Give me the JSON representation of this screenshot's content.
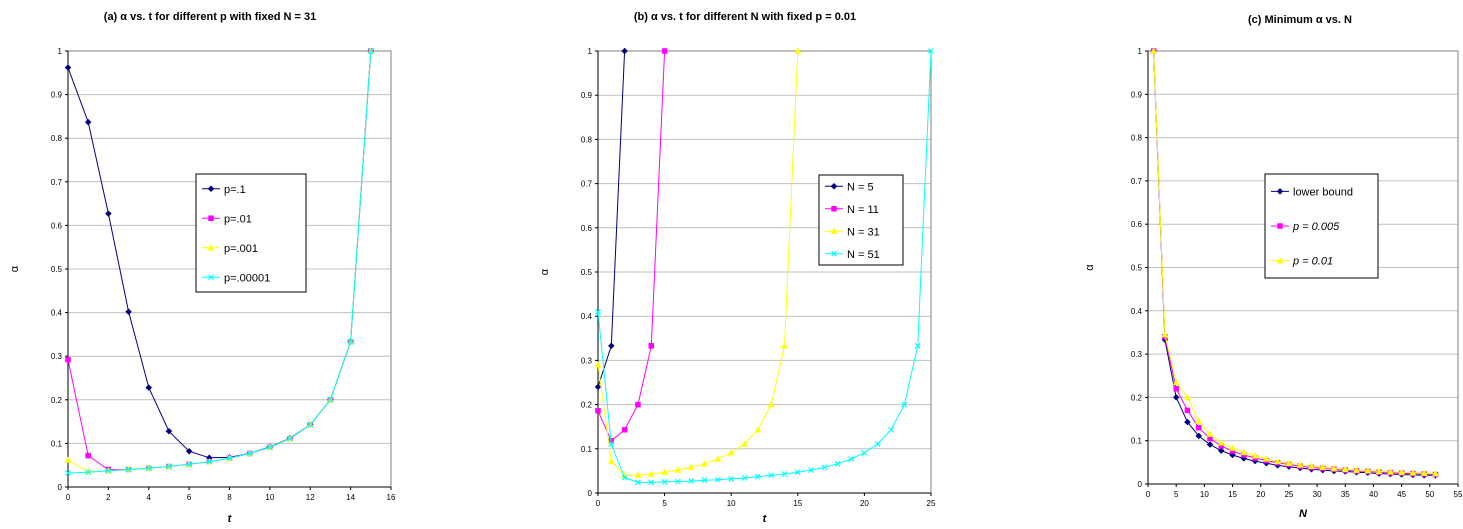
{
  "chart_data": [
    {
      "type": "line",
      "title": "(a) α vs. t for different p with fixed N = 31",
      "xlabel": "t",
      "ylabel": "α",
      "xlim": [
        0,
        16
      ],
      "ylim": [
        0,
        1
      ],
      "xticks": [
        "0",
        "2",
        "4",
        "6",
        "8",
        "10",
        "12",
        "14",
        "16"
      ],
      "yticks": [
        "0",
        "0.1",
        "0.2",
        "0.3",
        "0.4",
        "0.5",
        "0.6",
        "0.7",
        "0.8",
        "0.9",
        "1"
      ],
      "grid": "horizontal",
      "legend_placement": "center-right",
      "series": [
        {
          "name": "p=.1",
          "color": "#000080",
          "marker": "diamond",
          "x": [
            0,
            1,
            2,
            3,
            4,
            5,
            6,
            7,
            8,
            9,
            10,
            11,
            12,
            13,
            14,
            15
          ],
          "y": [
            0.962,
            0.837,
            0.627,
            0.402,
            0.228,
            0.128,
            0.082,
            0.067,
            0.068,
            0.077,
            0.092,
            0.112,
            0.143,
            0.2,
            0.333,
            1.0
          ]
        },
        {
          "name": "p=.01",
          "color": "#FF00FF",
          "marker": "square",
          "x": [
            0,
            1,
            2,
            3,
            4,
            5,
            6,
            7,
            8,
            9,
            10,
            11,
            12,
            13,
            14,
            15
          ],
          "y": [
            0.292,
            0.072,
            0.04,
            0.04,
            0.043,
            0.047,
            0.052,
            0.058,
            0.066,
            0.077,
            0.091,
            0.111,
            0.143,
            0.2,
            0.333,
            1.0
          ]
        },
        {
          "name": "p=.001",
          "color": "#FFFF00",
          "marker": "triangle",
          "x": [
            0,
            1,
            2,
            3,
            4,
            5,
            6,
            7,
            8,
            9,
            10,
            11,
            12,
            13,
            14,
            15
          ],
          "y": [
            0.062,
            0.035,
            0.037,
            0.04,
            0.043,
            0.047,
            0.052,
            0.058,
            0.066,
            0.077,
            0.091,
            0.111,
            0.143,
            0.2,
            0.333,
            1.0
          ]
        },
        {
          "name": "p=.00001",
          "color": "#00FFFF",
          "marker": "x",
          "x": [
            0,
            1,
            2,
            3,
            4,
            5,
            6,
            7,
            8,
            9,
            10,
            11,
            12,
            13,
            14,
            15
          ],
          "y": [
            0.032,
            0.034,
            0.037,
            0.04,
            0.043,
            0.047,
            0.052,
            0.058,
            0.066,
            0.077,
            0.091,
            0.111,
            0.143,
            0.2,
            0.333,
            1.0
          ]
        }
      ]
    },
    {
      "type": "line",
      "title": "(b) α vs. t for different N with fixed p = 0.01",
      "xlabel": "t",
      "ylabel": "α",
      "xlim": [
        0,
        25
      ],
      "ylim": [
        0,
        1
      ],
      "xticks": [
        "0",
        "5",
        "10",
        "15",
        "20",
        "25"
      ],
      "yticks": [
        "0",
        "0.1",
        "0.2",
        "0.3",
        "0.4",
        "0.5",
        "0.6",
        "0.7",
        "0.8",
        "0.9",
        "1"
      ],
      "grid": "horizontal",
      "legend_placement": "center-right",
      "series": [
        {
          "name": "N = 5",
          "color": "#000080",
          "marker": "diamond",
          "x": [
            0,
            1,
            2
          ],
          "y": [
            0.24,
            0.333,
            1.0
          ]
        },
        {
          "name": "N = 11",
          "color": "#FF00FF",
          "marker": "square",
          "x": [
            0,
            1,
            2,
            3,
            4,
            5
          ],
          "y": [
            0.186,
            0.118,
            0.143,
            0.2,
            0.333,
            1.0
          ]
        },
        {
          "name": "N = 31",
          "color": "#FFFF00",
          "marker": "triangle",
          "x": [
            0,
            1,
            2,
            3,
            4,
            5,
            6,
            7,
            8,
            9,
            10,
            11,
            12,
            13,
            14,
            15
          ],
          "y": [
            0.29,
            0.072,
            0.04,
            0.04,
            0.043,
            0.047,
            0.052,
            0.058,
            0.066,
            0.077,
            0.091,
            0.111,
            0.143,
            0.2,
            0.333,
            1.0
          ]
        },
        {
          "name": "N = 51",
          "color": "#00FFFF",
          "marker": "x",
          "x": [
            0,
            1,
            2,
            3,
            4,
            5,
            6,
            7,
            8,
            9,
            10,
            11,
            12,
            13,
            14,
            15,
            16,
            17,
            18,
            19,
            20,
            21,
            22,
            23,
            24,
            25
          ],
          "y": [
            0.41,
            0.11,
            0.035,
            0.024,
            0.024,
            0.025,
            0.026,
            0.027,
            0.029,
            0.03,
            0.032,
            0.034,
            0.037,
            0.04,
            0.043,
            0.047,
            0.052,
            0.058,
            0.066,
            0.077,
            0.091,
            0.111,
            0.143,
            0.2,
            0.333,
            1.0
          ]
        }
      ]
    },
    {
      "type": "line",
      "title": "(c) Minimum α vs. N",
      "xlabel": "N",
      "ylabel": "α",
      "xlim": [
        0,
        55
      ],
      "ylim": [
        0,
        1
      ],
      "xticks": [
        "0",
        "5",
        "10",
        "15",
        "20",
        "25",
        "30",
        "35",
        "40",
        "45",
        "50",
        "55"
      ],
      "yticks": [
        "0",
        "0.1",
        "0.2",
        "0.3",
        "0.4",
        "0.5",
        "0.6",
        "0.7",
        "0.8",
        "0.9",
        "1"
      ],
      "grid": "horizontal",
      "legend_placement": "center-right",
      "series": [
        {
          "name": "lower bound",
          "color": "#000080",
          "marker": "diamond",
          "x": [
            1,
            3,
            5,
            7,
            9,
            11,
            13,
            15,
            17,
            19,
            21,
            23,
            25,
            27,
            29,
            31,
            33,
            35,
            37,
            39,
            41,
            43,
            45,
            47,
            49,
            51
          ],
          "y": [
            1.0,
            0.333,
            0.2,
            0.143,
            0.111,
            0.091,
            0.077,
            0.067,
            0.059,
            0.053,
            0.048,
            0.043,
            0.04,
            0.037,
            0.034,
            0.032,
            0.03,
            0.029,
            0.027,
            0.026,
            0.024,
            0.023,
            0.022,
            0.021,
            0.02,
            0.02
          ]
        },
        {
          "name": "p = 0.005",
          "color": "#FF00FF",
          "marker": "square",
          "x": [
            1,
            3,
            5,
            7,
            9,
            11,
            13,
            15,
            17,
            19,
            21,
            23,
            25,
            27,
            29,
            31,
            33,
            35,
            37,
            39,
            41,
            43,
            45,
            47,
            49,
            51
          ],
          "y": [
            1.0,
            0.34,
            0.22,
            0.17,
            0.13,
            0.105,
            0.088,
            0.076,
            0.067,
            0.06,
            0.054,
            0.049,
            0.045,
            0.041,
            0.038,
            0.036,
            0.034,
            0.032,
            0.03,
            0.029,
            0.027,
            0.026,
            0.025,
            0.024,
            0.023,
            0.022
          ]
        },
        {
          "name": "p = 0.01",
          "color": "#FFFF00",
          "marker": "triangle",
          "x": [
            1,
            3,
            5,
            7,
            9,
            11,
            13,
            15,
            17,
            19,
            21,
            23,
            25,
            27,
            29,
            31,
            33,
            35,
            37,
            39,
            41,
            43,
            45,
            47,
            49,
            51
          ],
          "y": [
            1.0,
            0.345,
            0.235,
            0.2,
            0.145,
            0.115,
            0.095,
            0.083,
            0.073,
            0.065,
            0.058,
            0.052,
            0.048,
            0.044,
            0.041,
            0.039,
            0.036,
            0.034,
            0.032,
            0.031,
            0.029,
            0.028,
            0.027,
            0.026,
            0.025,
            0.024
          ]
        }
      ]
    }
  ]
}
